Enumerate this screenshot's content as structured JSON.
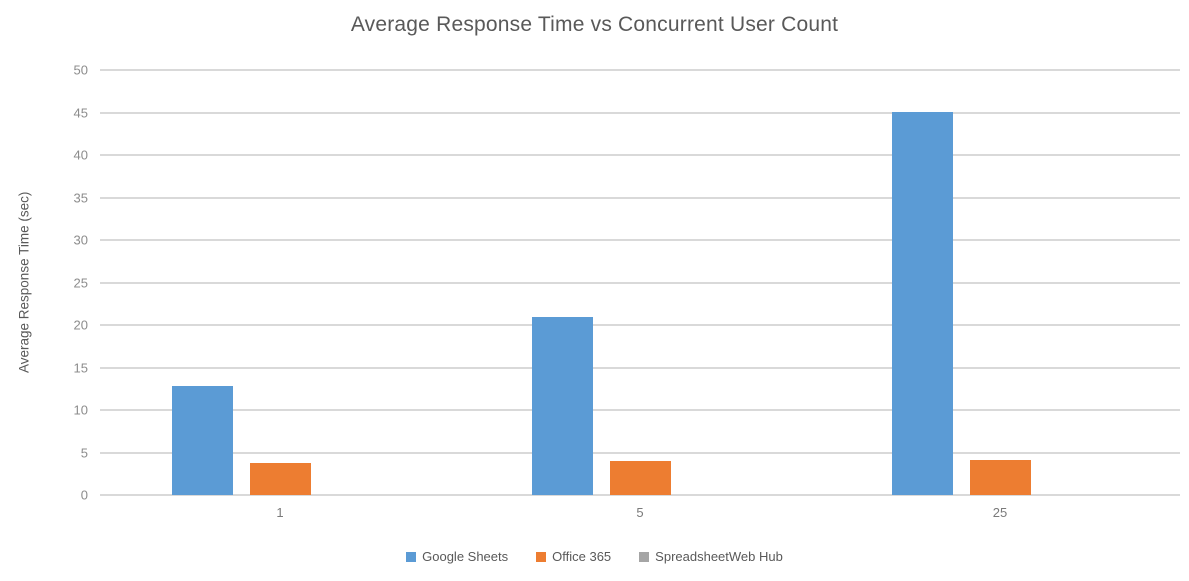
{
  "chart_data": {
    "type": "bar",
    "title": "Average Response Time vs Concurrent User Count",
    "xlabel": "",
    "ylabel": "Average Response Time (sec)",
    "categories": [
      "1",
      "5",
      "25"
    ],
    "series": [
      {
        "name": "Google Sheets",
        "color": "#5B9BD5",
        "values": [
          12.8,
          21.0,
          45.1
        ]
      },
      {
        "name": "Office 365",
        "color": "#ED7D31",
        "values": [
          3.8,
          4.0,
          4.1
        ]
      },
      {
        "name": "SpreadsheetWeb Hub",
        "color": "#A5A5A5",
        "values": [
          0,
          0,
          0
        ]
      }
    ],
    "ylim": [
      0,
      50
    ],
    "yticks": [
      0,
      5,
      10,
      15,
      20,
      25,
      30,
      35,
      40,
      45,
      50
    ],
    "grid": true,
    "legend_position": "bottom",
    "gridline_color": "#D9D9D9",
    "title_color": "#595959",
    "tick_label_color": "#8C8C8C"
  }
}
